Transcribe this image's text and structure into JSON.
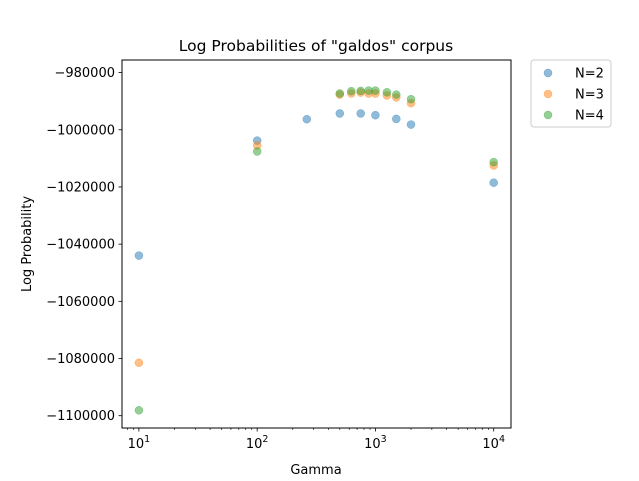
{
  "chart_data": {
    "type": "scatter",
    "title": "Log Probabilities of \"galdos\" corpus",
    "xlabel": "Gamma",
    "ylabel": "Log Probability",
    "xscale": "log",
    "xlim": [
      7.2,
      14000
    ],
    "ylim": [
      -1104300,
      -975600
    ],
    "xticks": [
      10,
      100,
      1000,
      10000
    ],
    "xtick_labels": [
      {
        "base": "10",
        "exp": "1"
      },
      {
        "base": "10",
        "exp": "2"
      },
      {
        "base": "10",
        "exp": "3"
      },
      {
        "base": "10",
        "exp": "4"
      }
    ],
    "yticks": [
      -980000,
      -1000000,
      -1020000,
      -1040000,
      -1060000,
      -1080000,
      -1100000
    ],
    "ytick_labels": [
      "−980000",
      "−1000000",
      "−1020000",
      "−1040000",
      "−1060000",
      "−1080000",
      "−1100000"
    ],
    "grid": false,
    "legend_position": "outside-top-right",
    "series": [
      {
        "name": "N=2",
        "color": "#1f77b4",
        "points": [
          [
            10,
            -1044000
          ],
          [
            100,
            -1003800
          ],
          [
            263,
            -996300
          ],
          [
            500,
            -994300
          ],
          [
            750,
            -994300
          ],
          [
            1000,
            -994900
          ],
          [
            1500,
            -996200
          ],
          [
            2000,
            -998200
          ],
          [
            10000,
            -1018500
          ]
        ]
      },
      {
        "name": "N=3",
        "color": "#ff7f0e",
        "points": [
          [
            10,
            -1081500
          ],
          [
            100,
            -1005500
          ],
          [
            500,
            -987700
          ],
          [
            625,
            -987300
          ],
          [
            750,
            -987000
          ],
          [
            875,
            -987300
          ],
          [
            1000,
            -987300
          ],
          [
            1250,
            -988000
          ],
          [
            1500,
            -988700
          ],
          [
            2000,
            -990700
          ],
          [
            10000,
            -1012500
          ]
        ]
      },
      {
        "name": "N=4",
        "color": "#2ca02c",
        "points": [
          [
            10,
            -1098100
          ],
          [
            100,
            -1007600
          ],
          [
            500,
            -987300
          ],
          [
            625,
            -986500
          ],
          [
            750,
            -986400
          ],
          [
            875,
            -986300
          ],
          [
            1000,
            -986300
          ],
          [
            1250,
            -986900
          ],
          [
            1500,
            -987700
          ],
          [
            2000,
            -989300
          ],
          [
            10000,
            -1011300
          ]
        ]
      }
    ]
  }
}
